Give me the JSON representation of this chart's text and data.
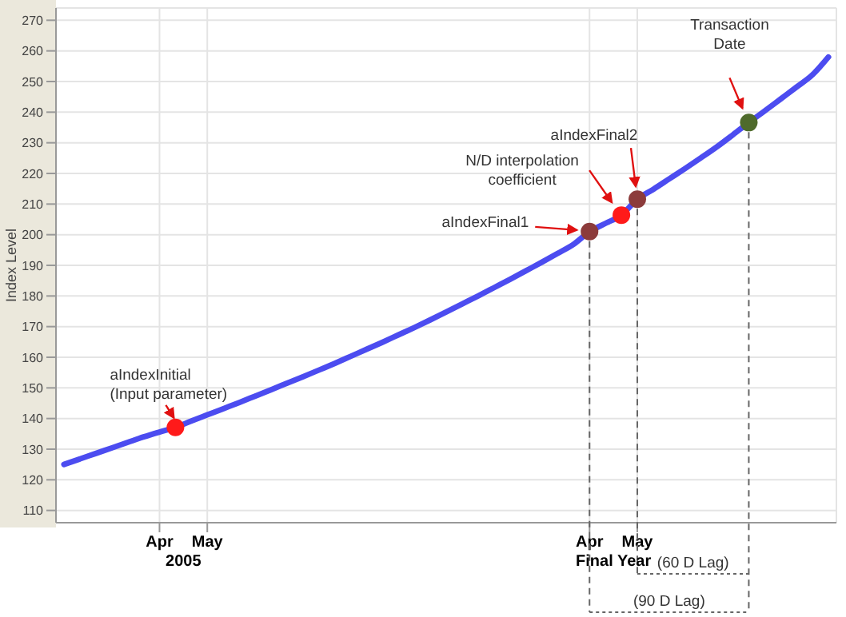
{
  "chart_data": {
    "type": "line",
    "ylabel": "Index Level",
    "categories": [
      null,
      null,
      null,
      null,
      null,
      null,
      "Apr",
      null,
      null,
      "May",
      null,
      null,
      null,
      null,
      null,
      null,
      null,
      null,
      null,
      null,
      null,
      null,
      null,
      null,
      null,
      null,
      null,
      null,
      null,
      null,
      null,
      null,
      null,
      "Apr",
      null,
      null,
      "May",
      null,
      null,
      null,
      null,
      null,
      null,
      null,
      null,
      null,
      null,
      null,
      null
    ],
    "ylim": [
      106,
      274
    ],
    "yticks": [
      110,
      120,
      130,
      140,
      150,
      160,
      170,
      180,
      190,
      200,
      210,
      220,
      230,
      240,
      250,
      260,
      270
    ],
    "grid": true,
    "legend": false,
    "series": [
      {
        "color": "#4c4cf0",
        "marker": "none",
        "line_style": "solid",
        "values": [
          125,
          126.8,
          128.6,
          130.4,
          132.2,
          134,
          135.6,
          137.1,
          139.2,
          141.2,
          143.2,
          145.2,
          147.3,
          149.4,
          151.5,
          153.6,
          155.8,
          158,
          160.3,
          162.6,
          164.9,
          167.3,
          169.7,
          172.2,
          174.8,
          177.4,
          180,
          182.7,
          185.4,
          188.2,
          191,
          193.9,
          196.9,
          201,
          203.7,
          206.4,
          211.6,
          214.8,
          218.2,
          221.6,
          225.1,
          228.7,
          232.6,
          236.6,
          240.4,
          244.3,
          248.2,
          252.2,
          258
        ]
      },
      {
        "type": "scatter",
        "marker": "circle",
        "values": [
          null,
          null,
          null,
          null,
          null,
          null,
          null,
          137.1,
          null,
          null,
          null,
          null,
          null,
          null,
          null,
          null,
          null,
          null,
          null,
          null,
          null,
          null,
          null,
          null,
          null,
          null,
          null,
          null,
          null,
          null,
          null,
          null,
          null,
          201,
          null,
          206.4,
          211.6,
          null,
          null,
          null,
          null,
          null,
          null,
          236.6,
          null,
          null,
          null,
          null,
          null
        ],
        "colors": [
          null,
          null,
          null,
          null,
          null,
          null,
          null,
          "#ff1a1a",
          null,
          null,
          null,
          null,
          null,
          null,
          null,
          null,
          null,
          null,
          null,
          null,
          null,
          null,
          null,
          null,
          null,
          null,
          null,
          null,
          null,
          null,
          null,
          null,
          null,
          "#8c3b3b",
          null,
          "#ff1a1a",
          "#8c3b3b",
          null,
          null,
          null,
          null,
          null,
          null,
          "#4f6b2c",
          null,
          null,
          null,
          null,
          null
        ]
      }
    ],
    "annotations": [
      "aIndexInitial\n(Input parameter)",
      "aIndexFinal1",
      "N/D interpolation\ncoefficient",
      "aIndexFinal2",
      "Transaction\nDate",
      "2005",
      "Final Year",
      "(60 D Lag)",
      "(90 D Lag)"
    ]
  }
}
